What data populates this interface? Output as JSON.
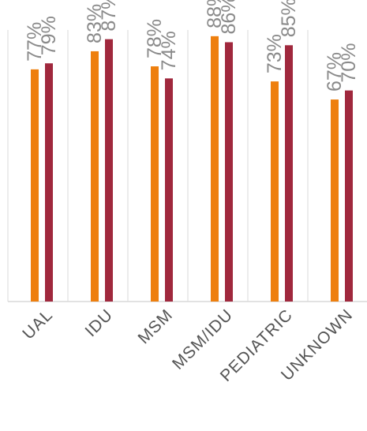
{
  "chart_data": {
    "type": "bar",
    "title": "",
    "xlabel": "",
    "ylabel": "",
    "categories": [
      "UAL",
      "IDU",
      "MSM",
      "MSM/IDU",
      "PEDIATRIC",
      "UNKNOWN"
    ],
    "category_labels_visible": [
      "UAL",
      "IDU",
      "MSM",
      "MSM/IDU",
      "PEDIATRIC",
      "UNKNOWN"
    ],
    "series": [
      {
        "values": [
          77,
          83,
          78,
          88,
          73,
          67
        ],
        "labels": [
          "77%",
          "83%",
          "78%",
          "88%",
          "73%",
          "67%"
        ]
      },
      {
        "values": [
          79,
          87,
          74,
          86,
          85,
          70
        ],
        "labels": [
          "79%",
          "87%",
          "74%",
          "86%",
          "85%",
          "70%"
        ]
      }
    ],
    "ylim": [
      0,
      100
    ],
    "value_suffix": "%",
    "grid": "vertical category separators",
    "legend": "none",
    "colors": [
      "#EE7F0E",
      "#A0283D"
    ],
    "axis_color": "#d9d9d9",
    "label_color": "#8a8a8a",
    "category_label_color": "#555555"
  }
}
